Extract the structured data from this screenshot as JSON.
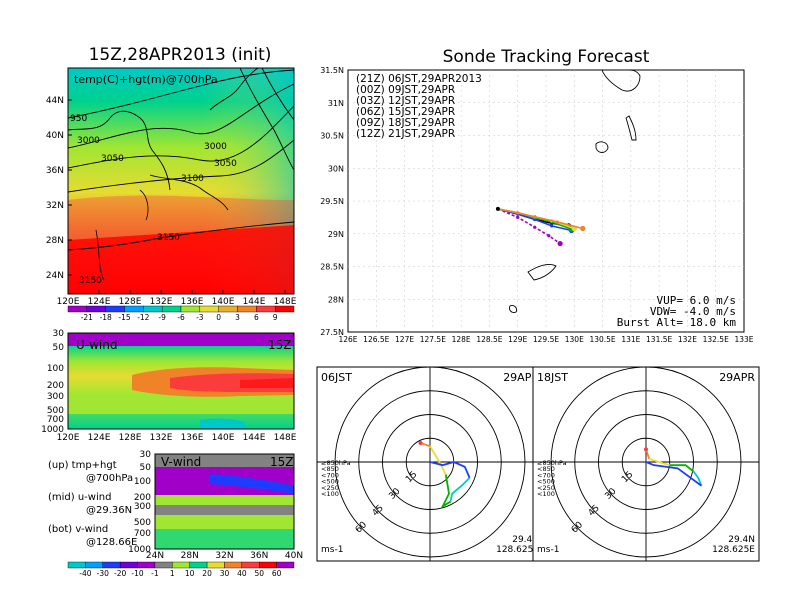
{
  "left": {
    "title": "15Z,28APR2013 (init)",
    "top_map": {
      "label": "temp(C)+hgt(m)@700hPa",
      "lat_ticks": [
        "44N",
        "40N",
        "36N",
        "32N",
        "28N",
        "24N"
      ],
      "lon_ticks": [
        "120E",
        "124E",
        "128E",
        "132E",
        "136E",
        "140E",
        "144E",
        "148E"
      ],
      "contour_labels": [
        "950",
        "3000",
        "3050",
        "3000",
        "3050",
        "3100",
        "3150",
        "3150"
      ]
    },
    "temp_colorbar": {
      "labels": [
        "-21",
        "-18",
        "-15",
        "-12",
        "-9",
        "-6",
        "-3",
        "0",
        "3",
        "6",
        "9"
      ],
      "colors": [
        "#a000c8",
        "#6e00dc",
        "#1e3cff",
        "#00a0ff",
        "#00c8c8",
        "#00d28c",
        "#a0e632",
        "#e6dc32",
        "#e6af2d",
        "#f08228",
        "#fa3c3c",
        "#ff0000"
      ]
    },
    "u_wind": {
      "label": "U-wind",
      "time": "15Z",
      "levels": [
        "30",
        "50",
        "100",
        "200",
        "300",
        "500",
        "700",
        "1000"
      ],
      "lon_ticks": [
        "120E",
        "124E",
        "128E",
        "132E",
        "136E",
        "140E",
        "144E",
        "148E"
      ]
    },
    "v_wind": {
      "label": "V-wind",
      "time": "15Z",
      "levels": [
        "30",
        "50",
        "100",
        "200",
        "300",
        "500",
        "700",
        "1000"
      ],
      "lat_ticks": [
        "24N",
        "28N",
        "32N",
        "36N",
        "40N"
      ]
    },
    "legend_notes": [
      {
        "a": "(up) tmp+hgt",
        "b": "@700hPa"
      },
      {
        "a": "(mid) u-wind",
        "b": "@29.36N"
      },
      {
        "a": "(bot) v-wind",
        "b": "@128.66E"
      }
    ],
    "wind_colorbar": {
      "labels": [
        "-40",
        "-30",
        "-20",
        "-10",
        "-1",
        "1",
        "10",
        "20",
        "30",
        "40",
        "50",
        "60"
      ],
      "colors": [
        "#00c8c8",
        "#00a0ff",
        "#1e3cff",
        "#6e00dc",
        "#a000c8",
        "#828282",
        "#a0e632",
        "#00d28c",
        "#e6dc32",
        "#f08228",
        "#fa3c3c",
        "#ff0000",
        "#a000c8"
      ]
    }
  },
  "right": {
    "title": "Sonde Tracking Forecast",
    "map": {
      "lat_ticks": [
        "31.5N",
        "31N",
        "30.5N",
        "30N",
        "29.5N",
        "29N",
        "28.5N",
        "28N",
        "27.5N"
      ],
      "lon_ticks": [
        "126E",
        "126.5E",
        "127E",
        "127.5E",
        "128E",
        "128.5E",
        "129E",
        "129.5E",
        "130E",
        "130.5E",
        "131E",
        "131.5E",
        "132E",
        "132.5E",
        "133E"
      ],
      "legend": [
        {
          "text": "(21Z) 06JST,29APR2013",
          "color": "#000000"
        },
        {
          "text": "(00Z) 09JST,29APR",
          "color": "#a000c8"
        },
        {
          "text": "(03Z) 12JST,29APR",
          "color": "#1e3cff"
        },
        {
          "text": "(06Z) 15JST,29APR",
          "color": "#00b400"
        },
        {
          "text": "(09Z) 18JST,29APR",
          "color": "#e6dc32"
        },
        {
          "text": "(12Z) 21JST,29APR",
          "color": "#f08228"
        }
      ],
      "params": [
        "VUP= 6.0 m/s",
        "VDW= -4.0 m/s",
        "Burst Alt= 18.0 km"
      ]
    },
    "hodo_left": {
      "time": "06JST",
      "date": "29APR",
      "rings": [
        "15",
        "30",
        "45",
        "60"
      ],
      "levels": [
        {
          "text": "≥850hPa",
          "color": "#fa3c3c"
        },
        {
          "text": "<850",
          "color": "#f08228"
        },
        {
          "text": "<700",
          "color": "#e6dc32"
        },
        {
          "text": "<500",
          "color": "#00b400"
        },
        {
          "text": "<250",
          "color": "#00c8c8"
        },
        {
          "text": "<100",
          "color": "#1e3cff"
        }
      ],
      "units": "ms-1",
      "lat": "29.4N",
      "lon": "128.625E"
    },
    "hodo_right": {
      "time": "18JST",
      "date": "29APR",
      "rings": [
        "15",
        "30",
        "45",
        "60"
      ],
      "levels": [
        {
          "text": "≥850hPa",
          "color": "#fa3c3c"
        },
        {
          "text": "<850",
          "color": "#f08228"
        },
        {
          "text": "<700",
          "color": "#e6dc32"
        },
        {
          "text": "<500",
          "color": "#00b400"
        },
        {
          "text": "<250",
          "color": "#00c8c8"
        },
        {
          "text": "<100",
          "color": "#1e3cff"
        }
      ],
      "units": "ms-1",
      "lat": "29.4N",
      "lon": "128.625E"
    }
  },
  "chart_data": [
    {
      "type": "line",
      "title": "Sonde Tracking Forecast",
      "xlim": [
        126,
        133
      ],
      "ylim": [
        27.5,
        31.5
      ],
      "series": [
        {
          "name": "(21Z) 06JST,29APR2013",
          "color": "#000000",
          "x": [
            128.65,
            129.0,
            129.3,
            129.6,
            129.9
          ],
          "y": [
            29.38,
            29.3,
            29.22,
            29.16,
            29.12
          ]
        },
        {
          "name": "(00Z) 09JST,29APR",
          "color": "#a000c8",
          "x": [
            128.65,
            129.0,
            129.3,
            129.55,
            129.75
          ],
          "y": [
            29.38,
            29.25,
            29.1,
            28.97,
            28.85
          ]
        },
        {
          "name": "(03Z) 12JST,29APR",
          "color": "#1e3cff",
          "x": [
            128.65,
            129.0,
            129.3,
            129.6,
            129.95
          ],
          "y": [
            29.38,
            29.3,
            29.22,
            29.12,
            29.05
          ]
        },
        {
          "name": "(06Z) 15JST,29APR",
          "color": "#00b400",
          "x": [
            128.65,
            129.0,
            129.3,
            129.6,
            129.95
          ],
          "y": [
            29.38,
            29.32,
            29.25,
            29.18,
            29.07
          ]
        },
        {
          "name": "(09Z) 18JST,29APR",
          "color": "#e6dc32",
          "x": [
            128.65,
            129.0,
            129.3,
            129.6,
            130.0
          ],
          "y": [
            29.38,
            29.32,
            29.26,
            29.2,
            29.08
          ]
        },
        {
          "name": "(12Z) 21JST,29APR",
          "color": "#f08228",
          "x": [
            128.65,
            129.0,
            129.3,
            129.7,
            130.15
          ],
          "y": [
            29.38,
            29.32,
            29.26,
            29.18,
            29.08
          ]
        }
      ]
    },
    {
      "type": "line",
      "title": "06JST 29APR",
      "xlim": [
        -60,
        60
      ],
      "ylim": [
        -60,
        60
      ],
      "series": [
        {
          "name": "≥850hPa",
          "color": "#fa3c3c",
          "x": [
            -6
          ],
          "y": [
            12
          ]
        },
        {
          "name": "<850",
          "color": "#f08228",
          "x": [
            -6,
            0
          ],
          "y": [
            12,
            10
          ]
        },
        {
          "name": "<700",
          "color": "#e6dc32",
          "x": [
            0,
            6,
            10
          ],
          "y": [
            10,
            0,
            -8
          ]
        },
        {
          "name": "<500",
          "color": "#00b400",
          "x": [
            10,
            12,
            8,
            13
          ],
          "y": [
            -8,
            -20,
            -28,
            -25
          ]
        },
        {
          "name": "<250",
          "color": "#00c8c8",
          "x": [
            13,
            14,
            20,
            25
          ],
          "y": [
            -25,
            -20,
            -15,
            -10
          ]
        },
        {
          "name": "<100",
          "color": "#1e3cff",
          "x": [
            25,
            22,
            15,
            8,
            0
          ],
          "y": [
            -10,
            -3,
            0,
            -2,
            0
          ]
        }
      ]
    },
    {
      "type": "line",
      "title": "18JST 29APR",
      "xlim": [
        -60,
        60
      ],
      "ylim": [
        -60,
        60
      ],
      "series": [
        {
          "name": "≥850hPa",
          "color": "#fa3c3c",
          "x": [
            0
          ],
          "y": [
            8
          ]
        },
        {
          "name": "<850",
          "color": "#f08228",
          "x": [
            0,
            2
          ],
          "y": [
            8,
            2
          ]
        },
        {
          "name": "<700",
          "color": "#e6dc32",
          "x": [
            2,
            8,
            15
          ],
          "y": [
            2,
            0,
            -2
          ]
        },
        {
          "name": "<500",
          "color": "#00b400",
          "x": [
            15,
            25,
            30
          ],
          "y": [
            -2,
            -2,
            -6
          ]
        },
        {
          "name": "<250",
          "color": "#00c8c8",
          "x": [
            30,
            33,
            35
          ],
          "y": [
            -6,
            -10,
            -15
          ]
        },
        {
          "name": "<100",
          "color": "#1e3cff",
          "x": [
            35,
            20,
            5,
            0
          ],
          "y": [
            -15,
            -4,
            -2,
            0
          ]
        }
      ]
    }
  ]
}
